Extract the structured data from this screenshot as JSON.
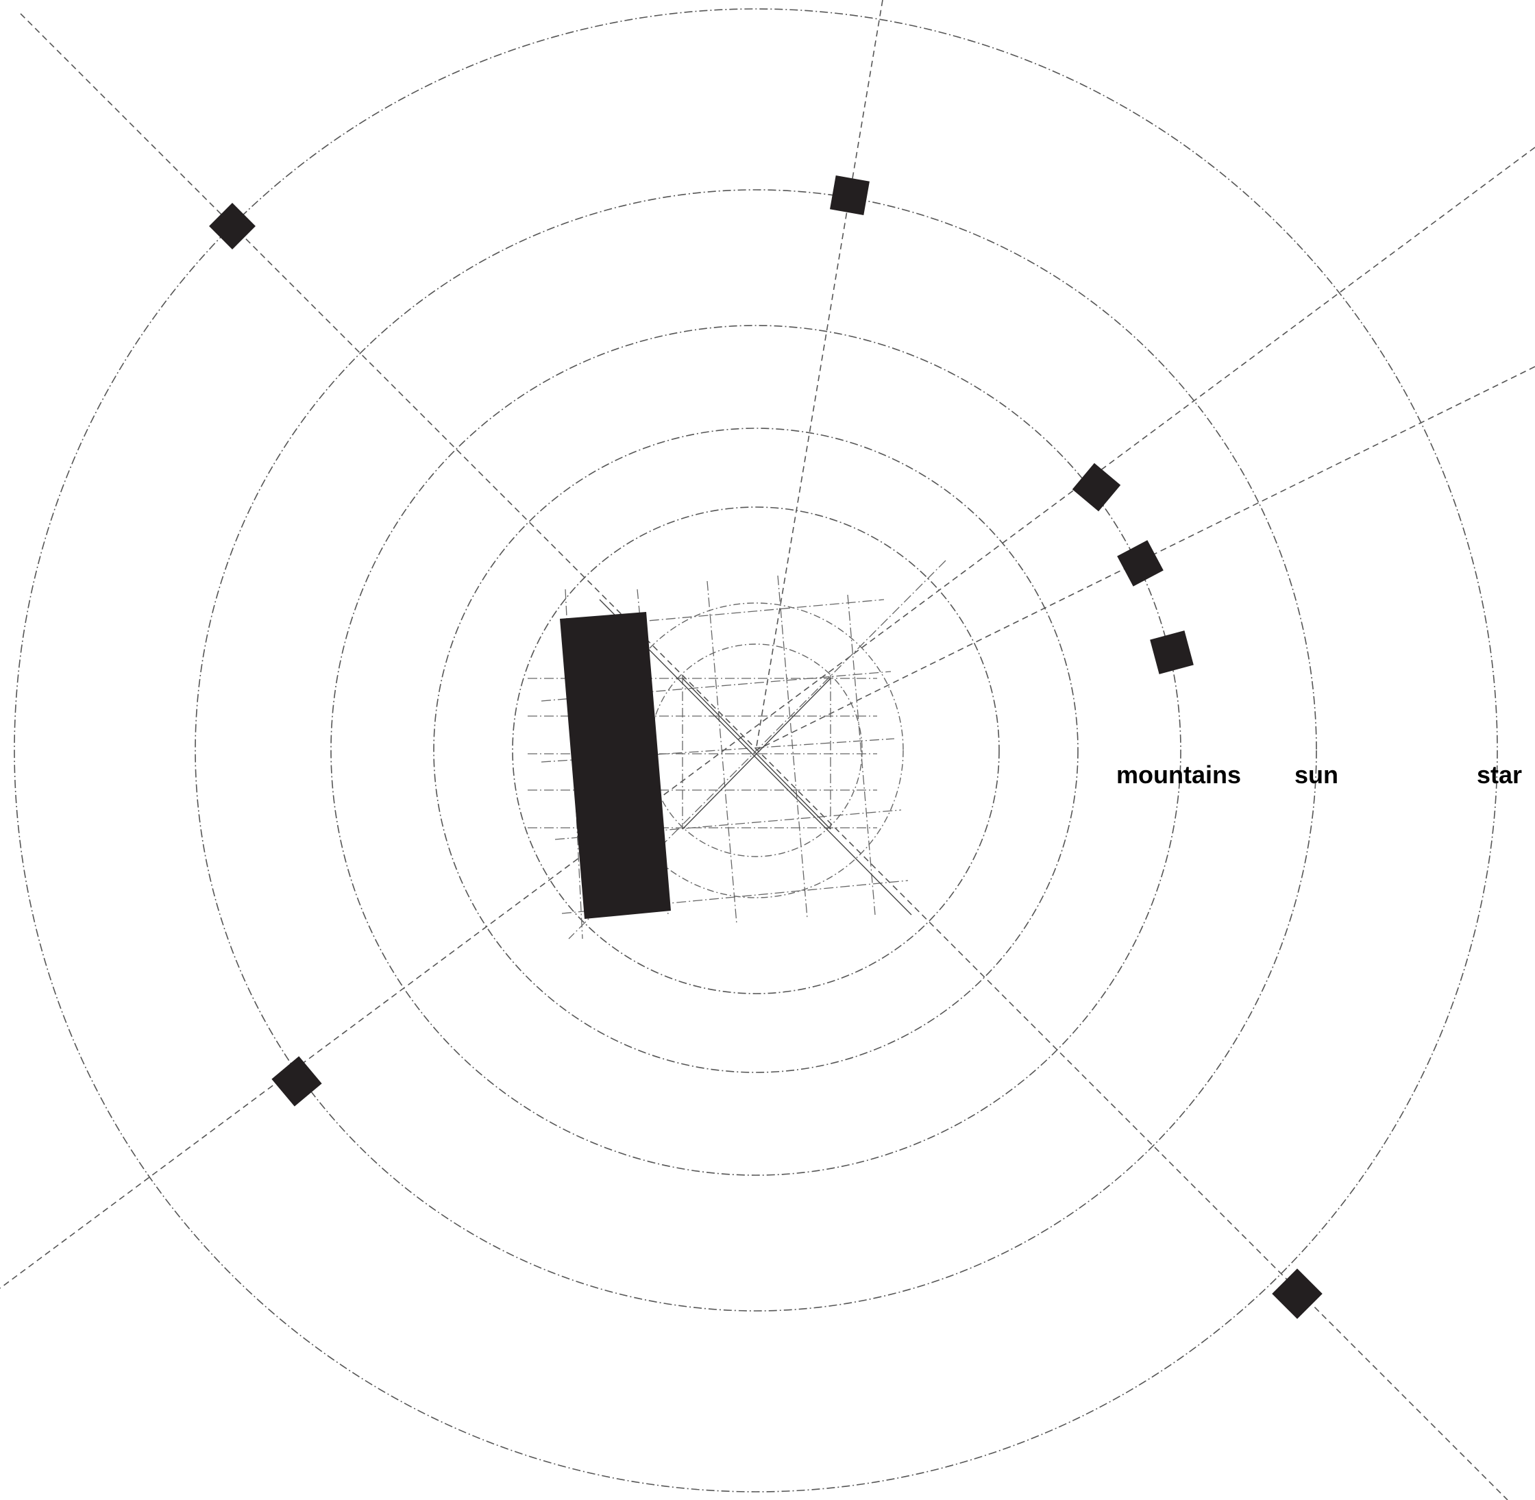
{
  "labels": {
    "mountains": "mountains",
    "sun": "sun",
    "star": "star"
  },
  "colors": {
    "markers": "#231f20",
    "lines": "#555555",
    "background": "#ffffff"
  }
}
